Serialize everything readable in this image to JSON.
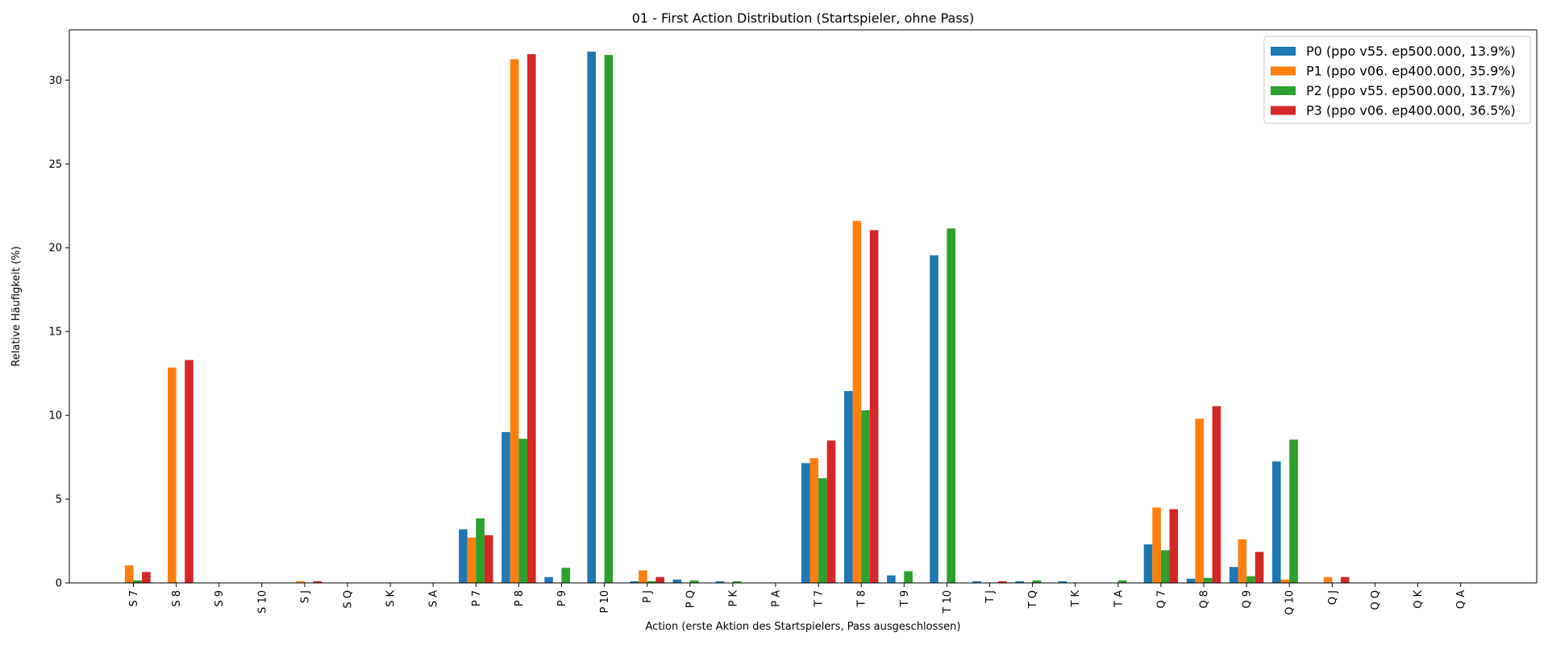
{
  "chart_data": {
    "type": "bar",
    "title": "01 - First Action Distribution (Startspieler, ohne Pass)",
    "xlabel": "Action (erste Aktion des Startspielers, Pass ausgeschlossen)",
    "ylabel": "Relative Häufigkeit (%)",
    "ylim": [
      0,
      33
    ],
    "yticks": [
      0,
      5,
      10,
      15,
      20,
      25,
      30
    ],
    "grid": false,
    "legend_position": "top-right",
    "categories": [
      "S 7",
      "S 8",
      "S 9",
      "S 10",
      "S J",
      "S Q",
      "S K",
      "S A",
      "P 7",
      "P 8",
      "P 9",
      "P 10",
      "P J",
      "P Q",
      "P K",
      "P A",
      "T 7",
      "T 8",
      "T 9",
      "T 10",
      "T J",
      "T Q",
      "T K",
      "T A",
      "Q 7",
      "Q 8",
      "Q 9",
      "Q 10",
      "Q J",
      "Q Q",
      "Q K",
      "Q A"
    ],
    "series": [
      {
        "name": "P0 (ppo v55. ep500.000, 13.9%)",
        "color": "#1f77b4",
        "values": [
          0,
          0,
          0,
          0,
          0,
          0,
          0,
          0,
          3.2,
          9.0,
          0.35,
          31.7,
          0.1,
          0.2,
          0.1,
          0,
          7.15,
          11.45,
          0.45,
          19.55,
          0.1,
          0.1,
          0.1,
          0,
          2.3,
          0.25,
          0.95,
          7.25,
          0,
          0,
          0,
          0
        ]
      },
      {
        "name": "P1 (ppo v06. ep400.000, 35.9%)",
        "color": "#ff7f0e",
        "values": [
          1.05,
          12.85,
          0,
          0,
          0.1,
          0,
          0,
          0,
          2.7,
          31.25,
          0,
          0,
          0.75,
          0,
          0,
          0,
          7.45,
          21.6,
          0,
          0,
          0,
          0,
          0,
          0,
          4.5,
          9.8,
          2.6,
          0.2,
          0.35,
          0,
          0,
          0
        ]
      },
      {
        "name": "P2 (ppo v55. ep500.000, 13.7%)",
        "color": "#2ca02c",
        "values": [
          0.15,
          0,
          0,
          0,
          0,
          0,
          0,
          0,
          3.85,
          8.6,
          0.9,
          31.5,
          0.1,
          0.15,
          0.1,
          0,
          6.25,
          10.3,
          0.7,
          21.15,
          0,
          0.15,
          0,
          0.15,
          1.95,
          0.3,
          0.4,
          8.55,
          0,
          0,
          0,
          0
        ]
      },
      {
        "name": "P3 (ppo v06. ep400.000, 36.5%)",
        "color": "#d62728",
        "values": [
          0.65,
          13.3,
          0,
          0,
          0.1,
          0,
          0,
          0,
          2.85,
          31.55,
          0,
          0,
          0.35,
          0,
          0,
          0,
          8.5,
          21.05,
          0,
          0,
          0.1,
          0,
          0,
          0,
          4.4,
          10.55,
          1.85,
          0,
          0.35,
          0,
          0,
          0
        ]
      }
    ]
  }
}
